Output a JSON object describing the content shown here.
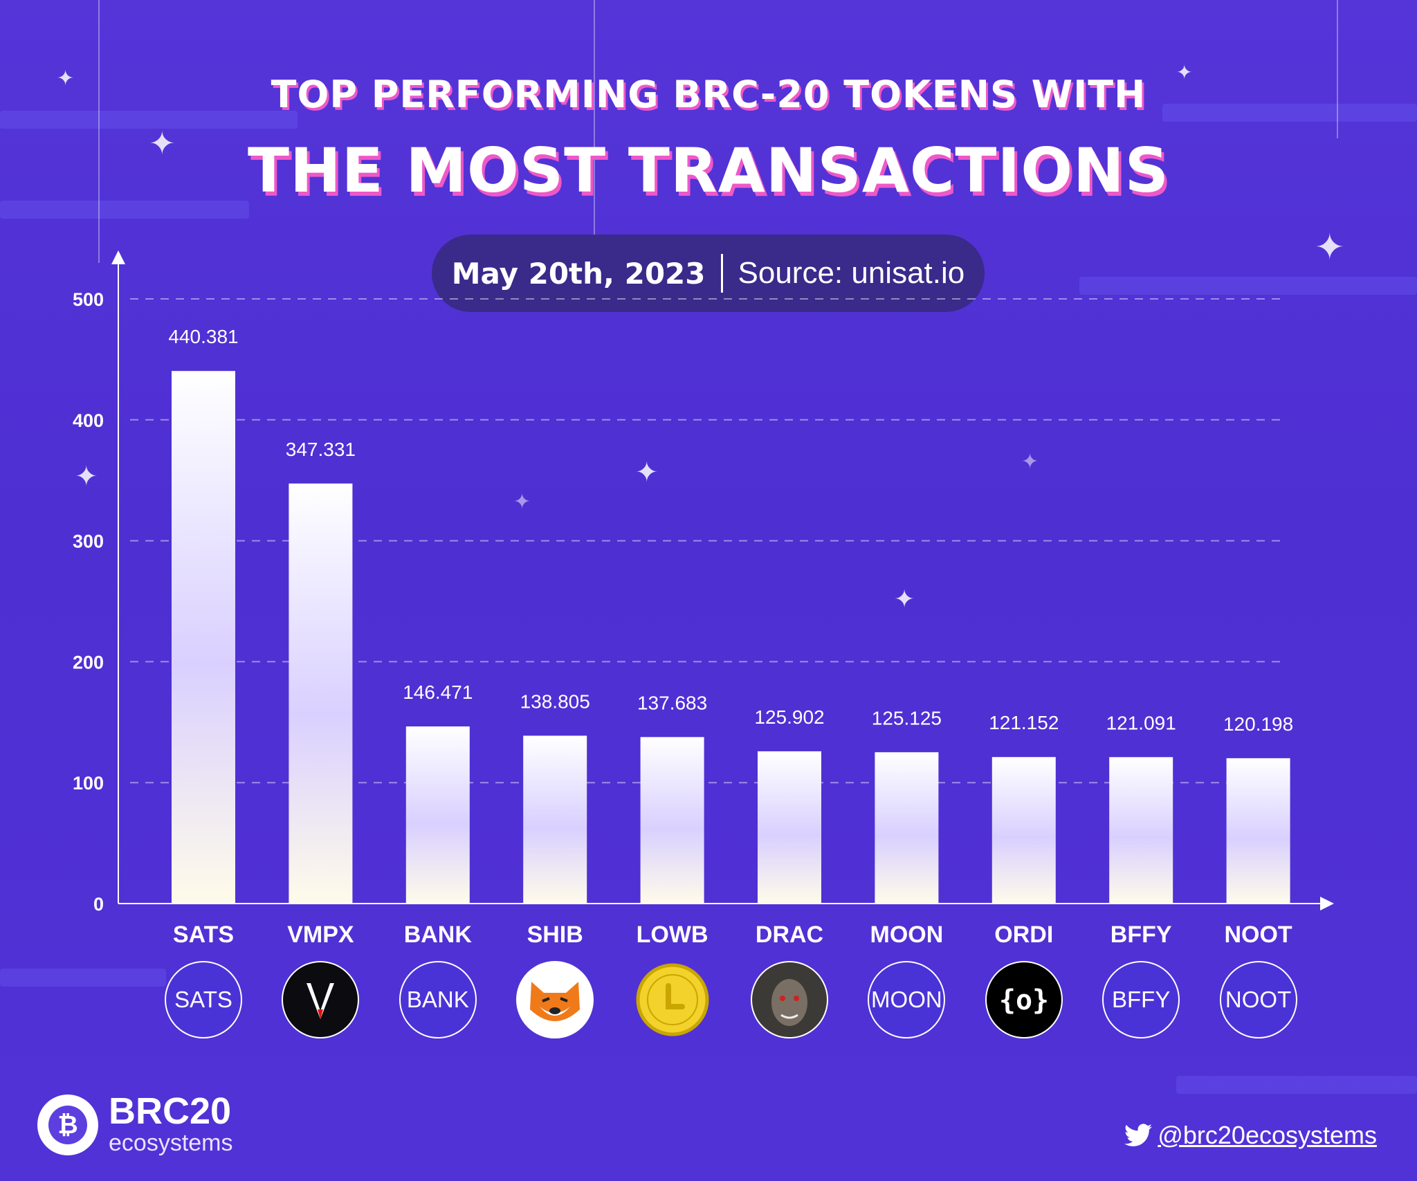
{
  "title_line1": "TOP PERFORMING BRC-20 TOKENS WITH",
  "title_line2": "THE MOST TRANSACTIONS",
  "date": "May 20th, 2023",
  "source": "Source: unisat.io",
  "brand": {
    "name": "BRC20",
    "sub": "ecosystems"
  },
  "twitter_handle": "@brc20ecosystems",
  "colors": {
    "background": "#5132d6",
    "title_shadow": "#ee58c8",
    "pill": "#3a2a8a",
    "coin_fill": "#4a33d6"
  },
  "chart_data": {
    "type": "bar",
    "categories": [
      "SATS",
      "VMPX",
      "BANK",
      "SHIB",
      "LOWB",
      "DRAC",
      "MOON",
      "ORDI",
      "BFFY",
      "NOOT"
    ],
    "values": [
      440.381,
      347.331,
      146.471,
      138.805,
      137.683,
      125.902,
      125.125,
      121.152,
      121.091,
      120.198
    ],
    "value_labels": [
      "440.381",
      "347.331",
      "146.471",
      "138.805",
      "137.683",
      "125.902",
      "125.125",
      "121.152",
      "121.091",
      "120.198"
    ],
    "yticks": [
      "0",
      "100",
      "200",
      "300",
      "400",
      "500"
    ],
    "ylim": [
      0,
      500
    ],
    "grid": true
  },
  "icons": [
    {
      "type": "text",
      "label": "SATS"
    },
    {
      "type": "logo",
      "name": "vmpx-v-logo-icon"
    },
    {
      "type": "text",
      "label": "BANK"
    },
    {
      "type": "logo",
      "name": "shiba-dog-icon"
    },
    {
      "type": "logo",
      "name": "lowb-gold-coin-icon"
    },
    {
      "type": "logo",
      "name": "drac-face-icon"
    },
    {
      "type": "text",
      "label": "MOON"
    },
    {
      "type": "logo",
      "name": "ordi-brackets-icon"
    },
    {
      "type": "text",
      "label": "BFFY"
    },
    {
      "type": "text",
      "label": "NOOT"
    }
  ]
}
